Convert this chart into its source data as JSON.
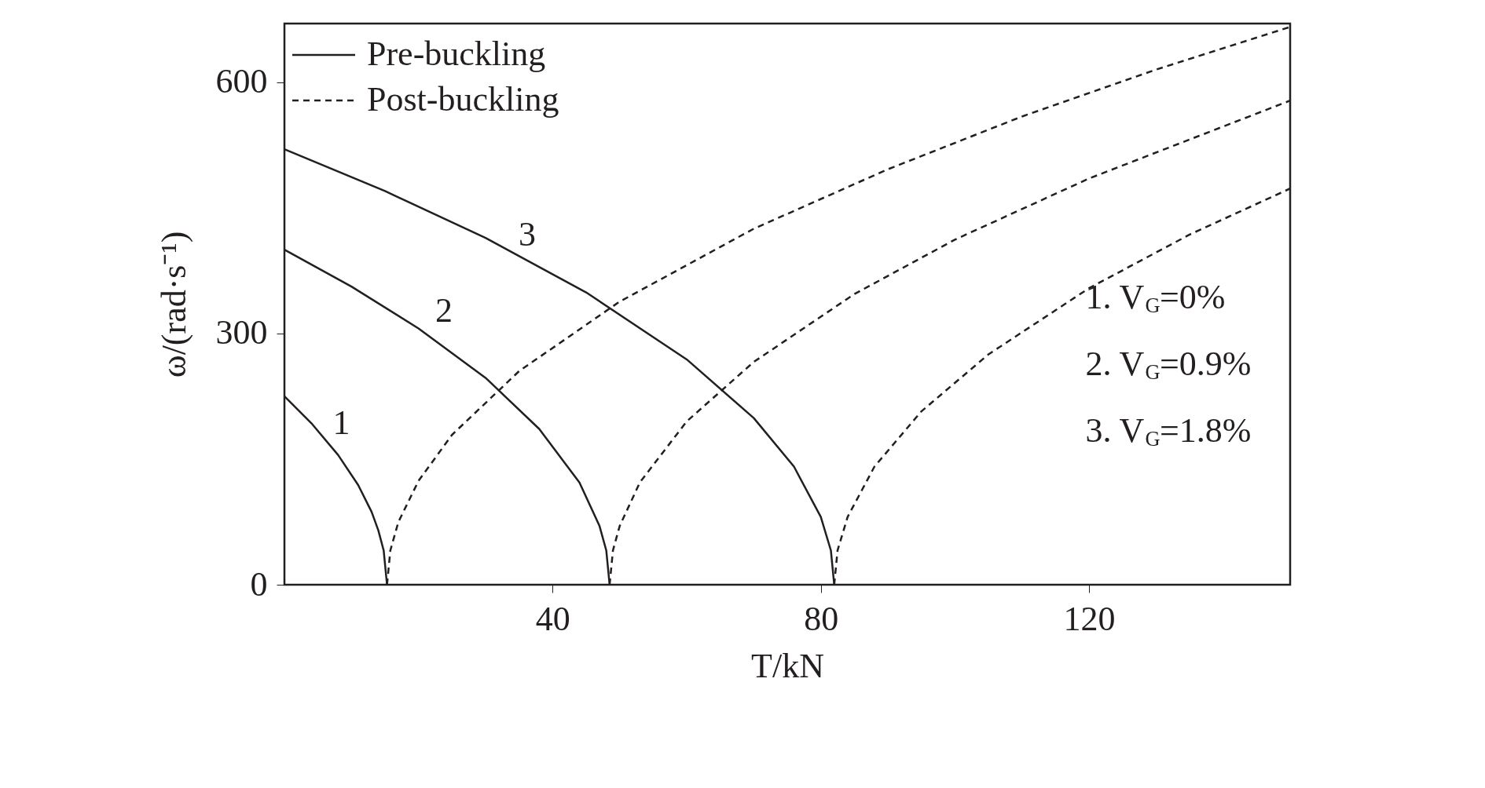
{
  "chart_data": {
    "type": "line",
    "xlabel": "T/kN",
    "ylabel": "ω/(rad·s⁻¹)",
    "xlim": [
      0,
      150
    ],
    "ylim": [
      0,
      670
    ],
    "xticks": [
      40,
      80,
      120
    ],
    "yticks": [
      0,
      300,
      600
    ],
    "grid": false,
    "legend": "top left",
    "marker": "none",
    "series": [
      {
        "name": "Pre-buckling",
        "color": "#231f20",
        "line_style": "solid",
        "x": [
          0,
          4,
          8,
          11,
          13,
          14,
          14.8,
          15.3
        ],
        "values": [
          225,
          193,
          155,
          119,
          87,
          65,
          41,
          0
        ]
      },
      {
        "color": "#231f20",
        "line_style": "solid",
        "x": [
          0,
          10,
          20,
          30,
          38,
          44,
          47,
          48,
          48.5
        ],
        "values": [
          400,
          356,
          306,
          247,
          186,
          122,
          70,
          41,
          0
        ]
      },
      {
        "color": "#231f20",
        "line_style": "solid",
        "x": [
          0,
          15,
          30,
          45,
          60,
          70,
          76,
          80,
          81.5,
          82
        ],
        "values": [
          520,
          470,
          414,
          349,
          269,
          199,
          141,
          81,
          41,
          0
        ]
      },
      {
        "name": "Post-buckling",
        "color": "#231f20",
        "line_style": "dashed",
        "x": [
          15.3,
          15.8,
          17,
          20,
          25,
          35,
          50,
          70,
          90,
          110,
          130,
          150
        ],
        "values": [
          0,
          41,
          75,
          124,
          179,
          255,
          338,
          425,
          496,
          559,
          615,
          666
        ]
      },
      {
        "color": "#231f20",
        "line_style": "dashed",
        "x": [
          48.5,
          49,
          50,
          53,
          60,
          70,
          85,
          100,
          120,
          150
        ],
        "values": [
          0,
          41,
          70,
          122,
          195,
          266,
          347,
          412,
          485,
          578
        ]
      },
      {
        "color": "#231f20",
        "line_style": "dashed",
        "x": [
          82,
          82.5,
          84,
          88,
          95,
          105,
          120,
          135,
          150
        ],
        "values": [
          0,
          41,
          81,
          141,
          207,
          275,
          354,
          418,
          473
        ]
      }
    ],
    "annotations": [
      "1",
      "2",
      "3",
      "1. V$_{G}$=0%",
      "2. V$_{G}$=0.9%",
      "3. V$_{G}$=1.8%"
    ]
  }
}
